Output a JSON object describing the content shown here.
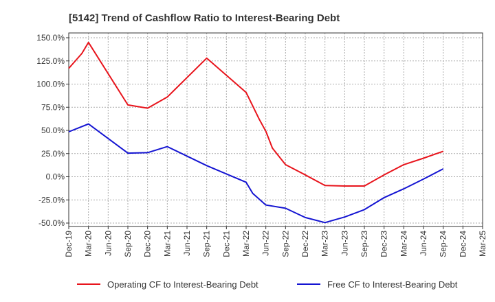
{
  "chart_data": {
    "type": "line",
    "title": "[5142]  Trend of Cashflow Ratio to Interest-Bearing Debt",
    "xlabel": "",
    "ylabel": "",
    "ylim": [
      -55,
      150
    ],
    "y_ticks": [
      {
        "v": 150,
        "label": "150.0%"
      },
      {
        "v": 125,
        "label": "125.0%"
      },
      {
        "v": 100,
        "label": "100.0%"
      },
      {
        "v": 75,
        "label": "75.0%"
      },
      {
        "v": 50,
        "label": "50.0%"
      },
      {
        "v": 25,
        "label": "25.0%"
      },
      {
        "v": 0,
        "label": "0.0%"
      },
      {
        "v": -25,
        "label": "-25.0%"
      },
      {
        "v": -50,
        "label": "-50.0%"
      }
    ],
    "x_ticks": [
      "Dec-19",
      "Mar-20",
      "Jun-20",
      "Sep-20",
      "Dec-20",
      "Mar-21",
      "Jun-21",
      "Sep-21",
      "Dec-21",
      "Mar-22",
      "Jun-22",
      "Sep-22",
      "Dec-22",
      "Mar-23",
      "Jun-23",
      "Sep-23",
      "Dec-23",
      "Mar-24",
      "Jun-24",
      "Sep-24",
      "Dec-24",
      "Mar-25"
    ],
    "grid": true,
    "legend_position": "bottom",
    "series": [
      {
        "name": "Operating CF to Interest-Bearing Debt",
        "color": "#e8141c",
        "points": [
          [
            "Dec-19",
            117
          ],
          [
            "Feb-20",
            133
          ],
          [
            "Mar-20",
            145
          ],
          [
            "Sep-20",
            77.5
          ],
          [
            "Dec-20",
            74
          ],
          [
            "Mar-21",
            86
          ],
          [
            "Sep-21",
            128
          ],
          [
            "Mar-22",
            91
          ],
          [
            "May-22",
            62
          ],
          [
            "Jun-22",
            49
          ],
          [
            "Jul-22",
            31
          ],
          [
            "Sep-22",
            13
          ],
          [
            "Dec-22",
            2
          ],
          [
            "Mar-23",
            -9.5
          ],
          [
            "Jun-23",
            -10
          ],
          [
            "Sep-23",
            -10
          ],
          [
            "Dec-23",
            2
          ],
          [
            "Mar-24",
            13
          ],
          [
            "Jun-24",
            20
          ],
          [
            "Sep-24",
            27.5
          ]
        ]
      },
      {
        "name": "Free CF to Interest-Bearing Debt",
        "color": "#1414d2",
        "points": [
          [
            "Dec-19",
            48.5
          ],
          [
            "Mar-20",
            57
          ],
          [
            "Sep-20",
            25.5
          ],
          [
            "Dec-20",
            26
          ],
          [
            "Mar-21",
            32.5
          ],
          [
            "Sep-21",
            12
          ],
          [
            "Mar-22",
            -6
          ],
          [
            "Apr-22",
            -18
          ],
          [
            "Jun-22",
            -30.5
          ],
          [
            "Sep-22",
            -34
          ],
          [
            "Dec-22",
            -44
          ],
          [
            "Mar-23",
            -49.5
          ],
          [
            "Jun-23",
            -43.5
          ],
          [
            "Sep-23",
            -35.5
          ],
          [
            "Dec-23",
            -22.5
          ],
          [
            "Mar-24",
            -13
          ],
          [
            "Jun-24",
            -2.5
          ],
          [
            "Sep-24",
            8.5
          ]
        ]
      }
    ]
  }
}
